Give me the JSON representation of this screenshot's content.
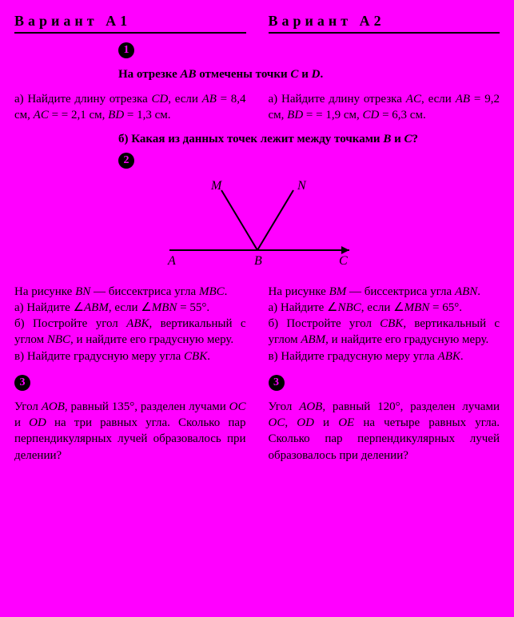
{
  "variantA1": "Вариант А1",
  "variantA2": "Вариант А2",
  "q1": {
    "num": "1",
    "intro": "На отрезке <i>AB</i> отмечены точки <i>C</i> и <i>D</i>.",
    "a1": "а) Найдите длину отрезка <i>CD</i>, если <i>AB</i> = 8,4 см, <i>AC</i> = = 2,1 см, <i>BD</i> = 1,3 см.",
    "a2": "а) Найдите длину отрезка <i>AC</i>, если <i>AB</i> = 9,2 см, <i>BD</i> = = 1,9 см, <i>CD</i> = 6,3 см.",
    "b": "б) Какая из данных точек лежит между точками <i>B</i> и <i>C</i>?"
  },
  "q2": {
    "num": "2",
    "fig": {
      "M": "M",
      "N": "N",
      "A": "A",
      "B": "B",
      "C": "C"
    },
    "a1": "На рисунке <i>BN</i> — биссектри­са угла <i>MBC</i>.<br>а) Найдите ∠<i>ABM</i>, если ∠<i>MBN</i> = 55°.<br>б) Постройте угол <i>ABK</i>, вер­тикальный с углом <i>NBC</i>, и найдите его градусную меру.<br>в) Найдите градусную меру угла <i>CBK</i>.",
    "a2": "На рисунке <i>BM</i> — биссектри­са угла <i>ABN</i>.<br>а) Найдите ∠<i>NBC</i>, если ∠<i>MBN</i> = 65°.<br>б) Постройте угол <i>CBK</i>, вер­тикальный с углом <i>ABM</i>, и найдите его градусную меру.<br>в) Найдите градусную меру угла <i>ABK</i>."
  },
  "q3": {
    "num": "3",
    "a1": "Угол <i>AOB</i>, равный 135°, разделен лучами <i>OC</i> и <i>OD</i> на три равных угла. Сколько пар перпендикулярных лучей об­разовалось при делении?",
    "a2": "Угол <i>AOB</i>, равный 120°, раз­делен лучами <i>OC</i>, <i>OD</i> и <i>OE</i> на четыре равных угла. Сколько пар перпендикулярных лучей образовалось при делении?"
  }
}
